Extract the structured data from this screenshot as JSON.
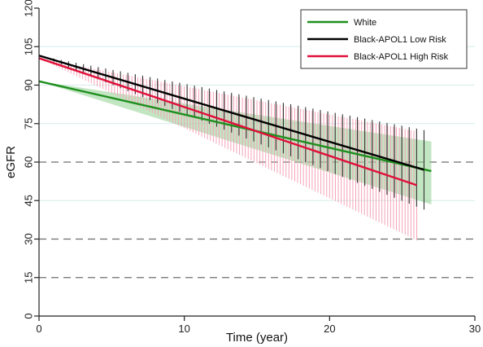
{
  "chart_data": {
    "type": "line",
    "xlabel": "Time (year)",
    "ylabel": "eGFR",
    "xlim": [
      0,
      30
    ],
    "ylim": [
      0,
      120
    ],
    "xticks": [
      "0",
      "10",
      "20",
      "30"
    ],
    "xtick_values": [
      0,
      10,
      20,
      30
    ],
    "yticks": [
      "0",
      "15",
      "30",
      "45",
      "60",
      "75",
      "90",
      "105",
      "120"
    ],
    "ytick_values": [
      0,
      15,
      30,
      45,
      60,
      75,
      90,
      105,
      120
    ],
    "reference_lines": [
      15,
      30,
      60
    ],
    "light_gridlines": [
      45,
      75,
      90,
      105
    ],
    "legend_position": "top-right",
    "series": [
      {
        "name": "White",
        "color": "#1e8f1e",
        "band_style": "shaded",
        "band_color": "#8fcf8f",
        "x": [
          0,
          27
        ],
        "y": [
          91.5,
          56.5
        ],
        "lower_end": [
          91.5,
          43.5
        ],
        "upper_end": [
          91.5,
          68.0
        ]
      },
      {
        "name": "Black-APOL1 Low Risk",
        "color": "#000000",
        "band_style": "bars",
        "band_color": "#333333",
        "x": [
          0,
          26.5
        ],
        "y": [
          101.5,
          57.0
        ],
        "lower_end": [
          101.5,
          41.5
        ],
        "upper_end": [
          101.5,
          72.5
        ]
      },
      {
        "name": "Black-APOL1 High Risk",
        "color": "#e0103a",
        "band_style": "bars",
        "band_color": "#f5a3b8",
        "x": [
          0,
          26
        ],
        "y": [
          100.5,
          51.0
        ],
        "lower_end": [
          100.5,
          29.5
        ],
        "upper_end": [
          100.5,
          72.0
        ]
      }
    ]
  }
}
